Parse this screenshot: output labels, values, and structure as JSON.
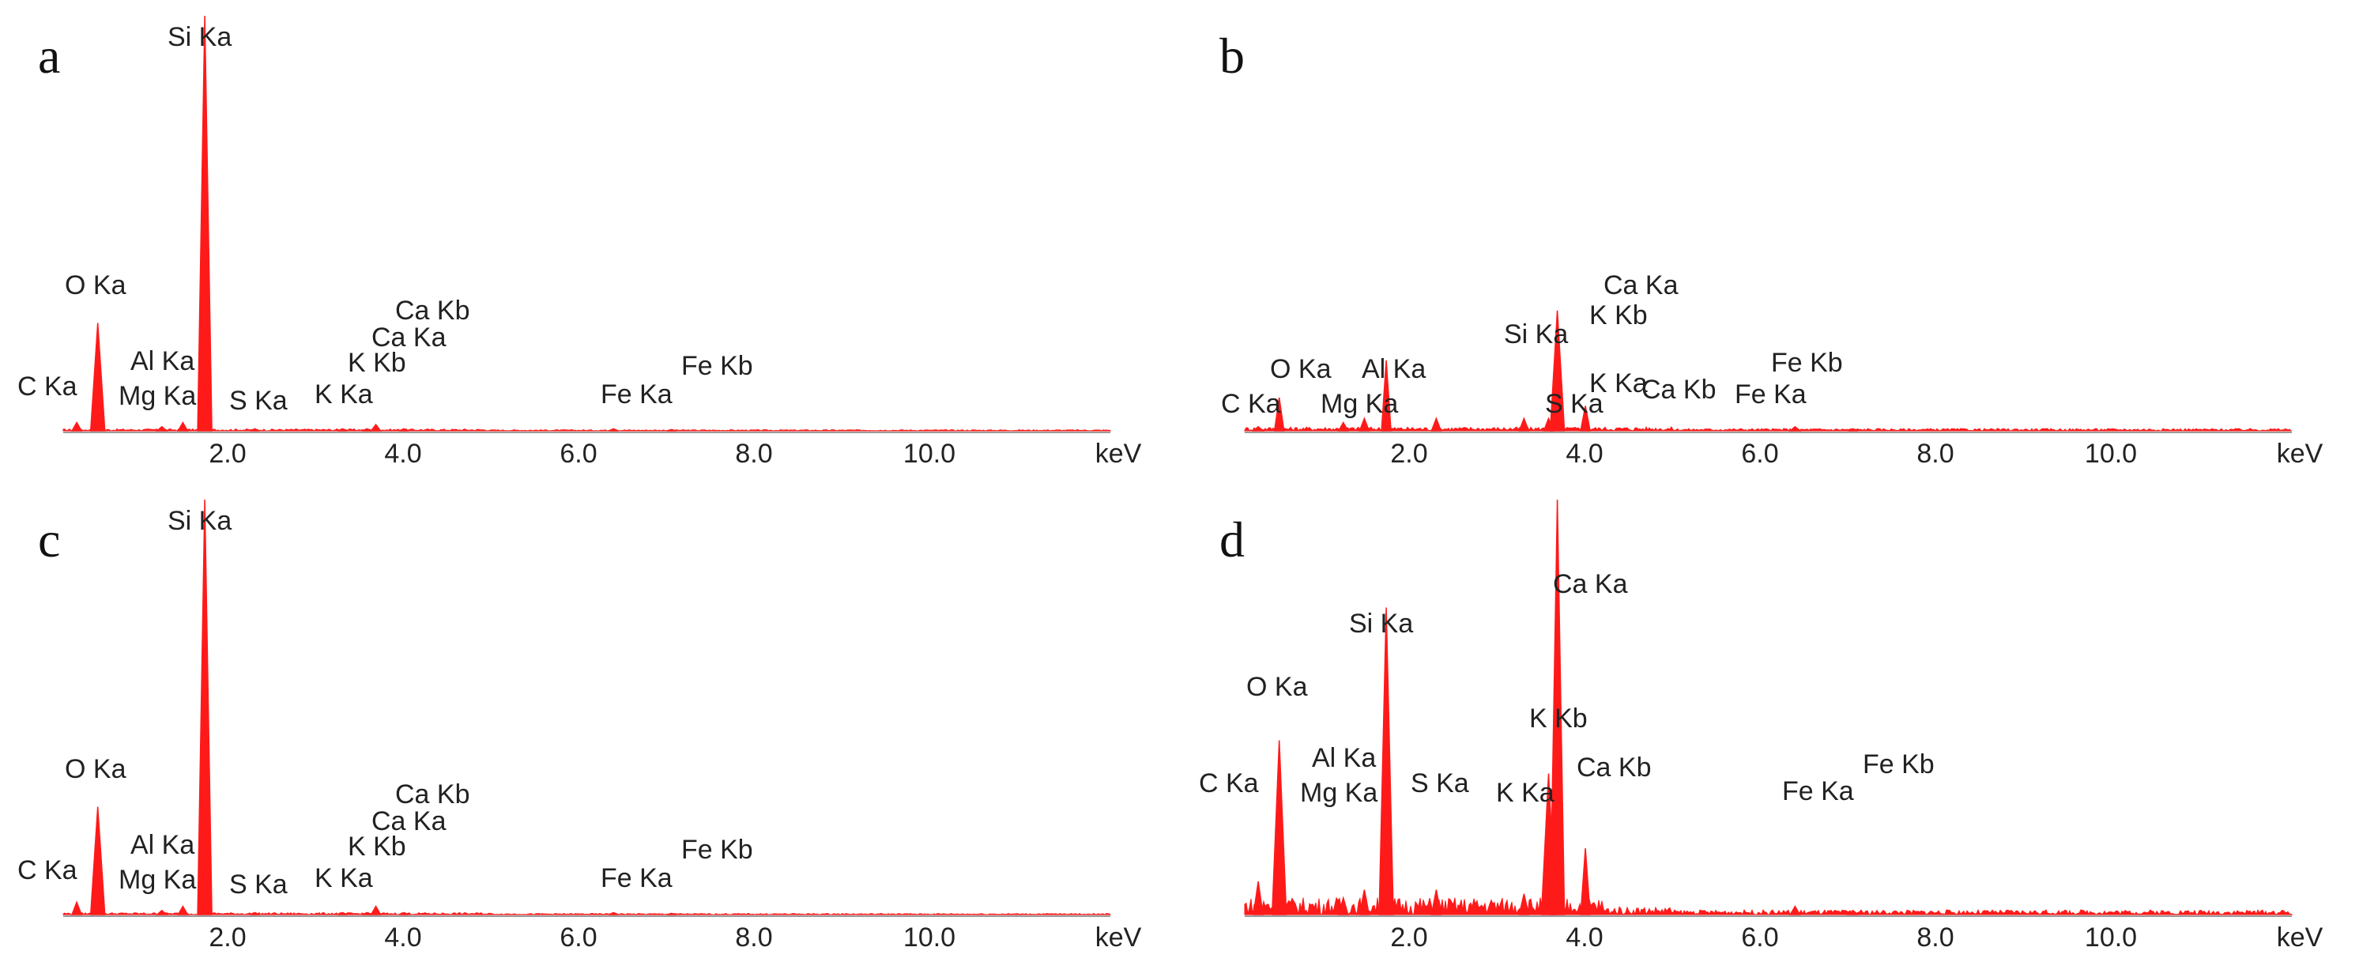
{
  "chart_data": [
    {
      "panel": "a",
      "type": "line",
      "xlabel": "keV",
      "xticks": [
        "2.0",
        "4.0",
        "6.0",
        "8.0",
        "10.0"
      ],
      "xlim": [
        0,
        12
      ],
      "ylim": [
        0,
        100
      ],
      "color": "#ff1a1a",
      "peaks": [
        {
          "label": "C Ka",
          "x": 0.28,
          "y": 2
        },
        {
          "label": "O Ka",
          "x": 0.52,
          "y": 26
        },
        {
          "label": "Mg Ka",
          "x": 1.25,
          "y": 1
        },
        {
          "label": "Al Ka",
          "x": 1.49,
          "y": 2
        },
        {
          "label": "Si Ka",
          "x": 1.74,
          "y": 100
        },
        {
          "label": "S Ka",
          "x": 2.31,
          "y": 0.5
        },
        {
          "label": "K Ka",
          "x": 3.31,
          "y": 0.5
        },
        {
          "label": "K Kb",
          "x": 3.59,
          "y": 0.5
        },
        {
          "label": "Ca Ka",
          "x": 3.69,
          "y": 1.5
        },
        {
          "label": "Ca Kb",
          "x": 4.01,
          "y": 0.5
        },
        {
          "label": "Fe Ka",
          "x": 6.4,
          "y": 0.5
        },
        {
          "label": "Fe Kb",
          "x": 7.06,
          "y": 0.3
        }
      ]
    },
    {
      "panel": "b",
      "type": "line",
      "xlabel": "keV",
      "xticks": [
        "2.0",
        "4.0",
        "6.0",
        "8.0",
        "10.0"
      ],
      "xlim": [
        0,
        12
      ],
      "ylim": [
        0,
        100
      ],
      "color": "#ff1a1a",
      "peaks": [
        {
          "label": "C Ka",
          "x": 0.28,
          "y": 1
        },
        {
          "label": "O Ka",
          "x": 0.52,
          "y": 8
        },
        {
          "label": "Mg Ka",
          "x": 1.25,
          "y": 2
        },
        {
          "label": "Al Ka",
          "x": 1.49,
          "y": 3
        },
        {
          "label": "Si Ka",
          "x": 1.74,
          "y": 17
        },
        {
          "label": "S Ka",
          "x": 2.31,
          "y": 3
        },
        {
          "label": "K Ka",
          "x": 3.31,
          "y": 3
        },
        {
          "label": "K Kb",
          "x": 3.59,
          "y": 3
        },
        {
          "label": "Ca Ka",
          "x": 3.69,
          "y": 29
        },
        {
          "label": "Ca Kb",
          "x": 4.01,
          "y": 6
        },
        {
          "label": "Fe Ka",
          "x": 6.4,
          "y": 1
        },
        {
          "label": "Fe Kb",
          "x": 7.06,
          "y": 0.5
        }
      ]
    },
    {
      "panel": "c",
      "type": "line",
      "xlabel": "keV",
      "xticks": [
        "2.0",
        "4.0",
        "6.0",
        "8.0",
        "10.0"
      ],
      "xlim": [
        0,
        12
      ],
      "ylim": [
        0,
        100
      ],
      "color": "#ff1a1a",
      "peaks": [
        {
          "label": "C Ka",
          "x": 0.28,
          "y": 3
        },
        {
          "label": "O Ka",
          "x": 0.52,
          "y": 26
        },
        {
          "label": "Mg Ka",
          "x": 1.25,
          "y": 1
        },
        {
          "label": "Al Ka",
          "x": 1.49,
          "y": 2
        },
        {
          "label": "Si Ka",
          "x": 1.74,
          "y": 100
        },
        {
          "label": "S Ka",
          "x": 2.31,
          "y": 0.5
        },
        {
          "label": "K Ka",
          "x": 3.31,
          "y": 0.5
        },
        {
          "label": "K Kb",
          "x": 3.59,
          "y": 0.5
        },
        {
          "label": "Ca Ka",
          "x": 3.69,
          "y": 2
        },
        {
          "label": "Ca Kb",
          "x": 4.01,
          "y": 0.5
        },
        {
          "label": "Fe Ka",
          "x": 6.4,
          "y": 0.5
        },
        {
          "label": "Fe Kb",
          "x": 7.06,
          "y": 0.3
        }
      ]
    },
    {
      "panel": "d",
      "type": "line",
      "xlabel": "keV",
      "xticks": [
        "2.0",
        "4.0",
        "6.0",
        "8.0",
        "10.0"
      ],
      "xlim": [
        0,
        12
      ],
      "ylim": [
        0,
        100
      ],
      "color": "#ff1a1a",
      "peaks": [
        {
          "label": "C Ka",
          "x": 0.28,
          "y": 8
        },
        {
          "label": "O Ka",
          "x": 0.52,
          "y": 42
        },
        {
          "label": "Mg Ka",
          "x": 1.25,
          "y": 4
        },
        {
          "label": "Al Ka",
          "x": 1.49,
          "y": 6
        },
        {
          "label": "Si Ka",
          "x": 1.74,
          "y": 74
        },
        {
          "label": "S Ka",
          "x": 2.31,
          "y": 6
        },
        {
          "label": "K Ka",
          "x": 3.31,
          "y": 5
        },
        {
          "label": "K Kb",
          "x": 3.59,
          "y": 34
        },
        {
          "label": "Ca Ka",
          "x": 3.69,
          "y": 100
        },
        {
          "label": "Ca Kb",
          "x": 4.01,
          "y": 16
        },
        {
          "label": "Fe Ka",
          "x": 6.4,
          "y": 2
        },
        {
          "label": "Fe Kb",
          "x": 7.06,
          "y": 1
        }
      ]
    }
  ]
}
